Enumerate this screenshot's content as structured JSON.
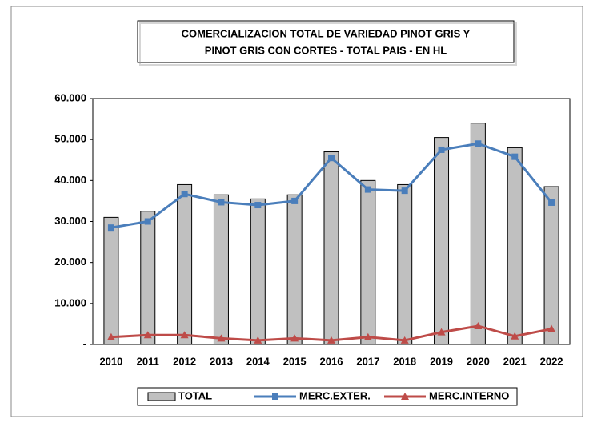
{
  "chart_data": {
    "type": "bar",
    "title": [
      "COMERCIALIZACION TOTAL DE VARIEDAD PINOT GRIS Y",
      "PINOT GRIS CON CORTES - TOTAL PAIS - EN HL"
    ],
    "categories": [
      "2010",
      "2011",
      "2012",
      "2013",
      "2014",
      "2015",
      "2016",
      "2017",
      "2018",
      "2019",
      "2020",
      "2021",
      "2022"
    ],
    "series": [
      {
        "name": "TOTAL",
        "type": "bar",
        "color": "#c0c0c0",
        "values": [
          31000,
          32500,
          39000,
          36500,
          35500,
          36500,
          47000,
          40000,
          39000,
          50500,
          54000,
          48000,
          38500
        ]
      },
      {
        "name": "MERC.EXTER.",
        "type": "line",
        "marker": "square",
        "color": "#4a7ebb",
        "values": [
          28500,
          30000,
          36700,
          34700,
          34000,
          35000,
          45500,
          37800,
          37500,
          47500,
          49000,
          45800,
          34600
        ]
      },
      {
        "name": "MERC.INTERNO",
        "type": "line",
        "marker": "triangle",
        "color": "#be4b48",
        "values": [
          1800,
          2300,
          2300,
          1500,
          1000,
          1500,
          1000,
          1800,
          1000,
          3000,
          4500,
          2000,
          3800
        ]
      }
    ],
    "ylim": [
      0,
      60000
    ],
    "yticks": [
      {
        "value": 0,
        "label": "-"
      },
      {
        "value": 10000,
        "label": "10.000"
      },
      {
        "value": 20000,
        "label": "20.000"
      },
      {
        "value": 30000,
        "label": "30.000"
      },
      {
        "value": 40000,
        "label": "40.000"
      },
      {
        "value": 50000,
        "label": "50.000"
      },
      {
        "value": 60000,
        "label": "60.000"
      }
    ],
    "grid": false,
    "legend": "bottom"
  }
}
